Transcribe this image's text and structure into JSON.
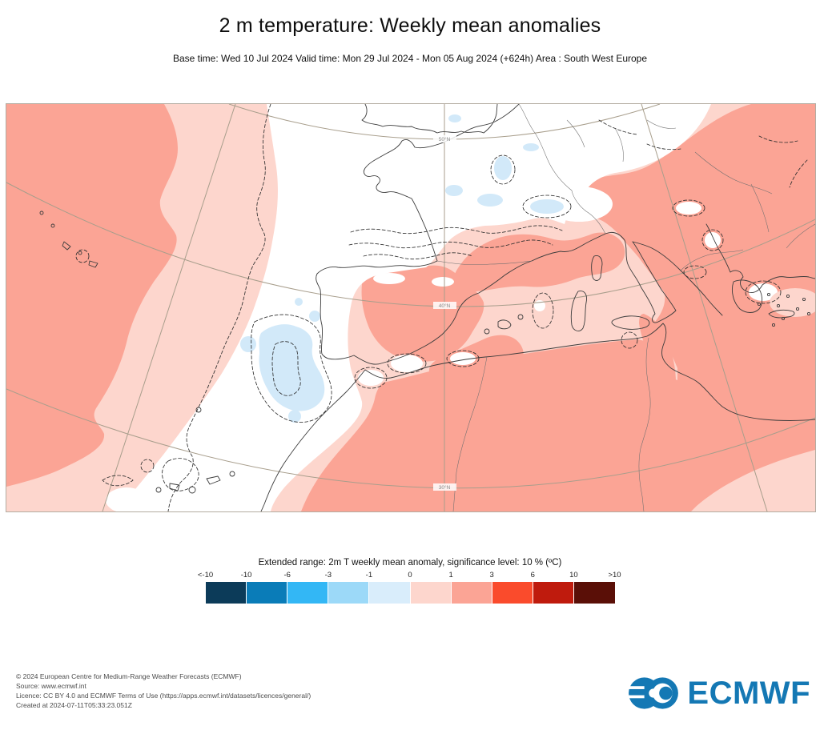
{
  "header": {
    "title": "2 m temperature: Weekly mean anomalies",
    "subtitle": "Base time: Wed 10 Jul 2024 Valid time: Mon 29 Jul 2024 - Mon 05 Aug 2024 (+624h) Area : South West Europe"
  },
  "map": {
    "graticule_labels": [
      "50°N",
      "40°N",
      "30°N"
    ]
  },
  "legend": {
    "title": "Extended range: 2m T weekly mean anomaly, significance level: 10 % (ºC)",
    "ticks": [
      "<-10",
      "-10",
      "-6",
      "-3",
      "-1",
      "0",
      "1",
      "3",
      "6",
      "10",
      ">10"
    ],
    "colors": [
      "#0c3b59",
      "#0a7cb8",
      "#33b7f5",
      "#9cd9f8",
      "#d9edfb",
      "#fdd6cd",
      "#fba495",
      "#fa4b2c",
      "#bf1b0d",
      "#5a0f07"
    ]
  },
  "footer": {
    "lines": [
      "© 2024 European Centre for Medium-Range Weather Forecasts (ECMWF)",
      "Source: www.ecmwf.int",
      "Licence: CC BY 4.0 and ECMWF Terms of Use (https://apps.ecmwf.int/datasets/licences/general/)",
      "Created at 2024-07-11T05:33:23.051Z"
    ]
  },
  "logo": {
    "text": "ECMWF",
    "color": "#1478b4"
  },
  "chart_data": {
    "type": "heatmap",
    "title": "2 m temperature: Weekly mean anomalies",
    "base_time": "Wed 10 Jul 2024",
    "valid_time": "Mon 29 Jul 2024 - Mon 05 Aug 2024 (+624h)",
    "area": "South West Europe",
    "units": "ºC",
    "significance_level": "10 %",
    "colorbar": {
      "label": "Extended range: 2m T weekly mean anomaly, significance level: 10 % (ºC)",
      "tick_labels": [
        "<-10",
        "-10",
        "-6",
        "-3",
        "-1",
        "0",
        "1",
        "3",
        "6",
        "10",
        ">10"
      ],
      "bin_edges": [
        -10,
        -6,
        -3,
        -1,
        0,
        1,
        3,
        6,
        10
      ],
      "bin_colors": [
        "#0c3b59",
        "#0a7cb8",
        "#33b7f5",
        "#9cd9f8",
        "#d9edfb",
        "#fdd6cd",
        "#fba495",
        "#fa4b2c",
        "#bf1b0d",
        "#5a0f07"
      ]
    },
    "graticule": {
      "parallels": [
        "50°N",
        "40°N",
        "30°N"
      ],
      "grid": true
    },
    "regions": [
      {
        "area": "far western Atlantic (west edge of map, incl. Azores)",
        "anomaly_c": "+1 to +3"
      },
      {
        "area": "eastern Atlantic band west of Iberia down to Canary Islands",
        "anomaly_c": "0 to +1 and near 0"
      },
      {
        "area": "west-central Iberia and adjacent Atlantic off Portugal",
        "anomaly_c": "-1 to 0"
      },
      {
        "area": "France, southern Britain, central Europe",
        "anomaly_c": "near 0 (not significant)"
      },
      {
        "area": "small patches NE France / Po valley / S England",
        "anomaly_c": "-1 to 0"
      },
      {
        "area": "central & eastern Spain, S France, N Italy, Adriatic, Balkans, Greece",
        "anomaly_c": "+1 to +3"
      },
      {
        "area": "North Africa interior (Morocco, Algeria, Tunisia, Libya)",
        "anomaly_c": "+1 to +3"
      },
      {
        "area": "western Mediterranean sea, Tyrrhenian sea, SE corner of map",
        "anomaly_c": "0 to +1"
      }
    ],
    "annotations": "dashed contours mark the 10% significance boundaries"
  }
}
